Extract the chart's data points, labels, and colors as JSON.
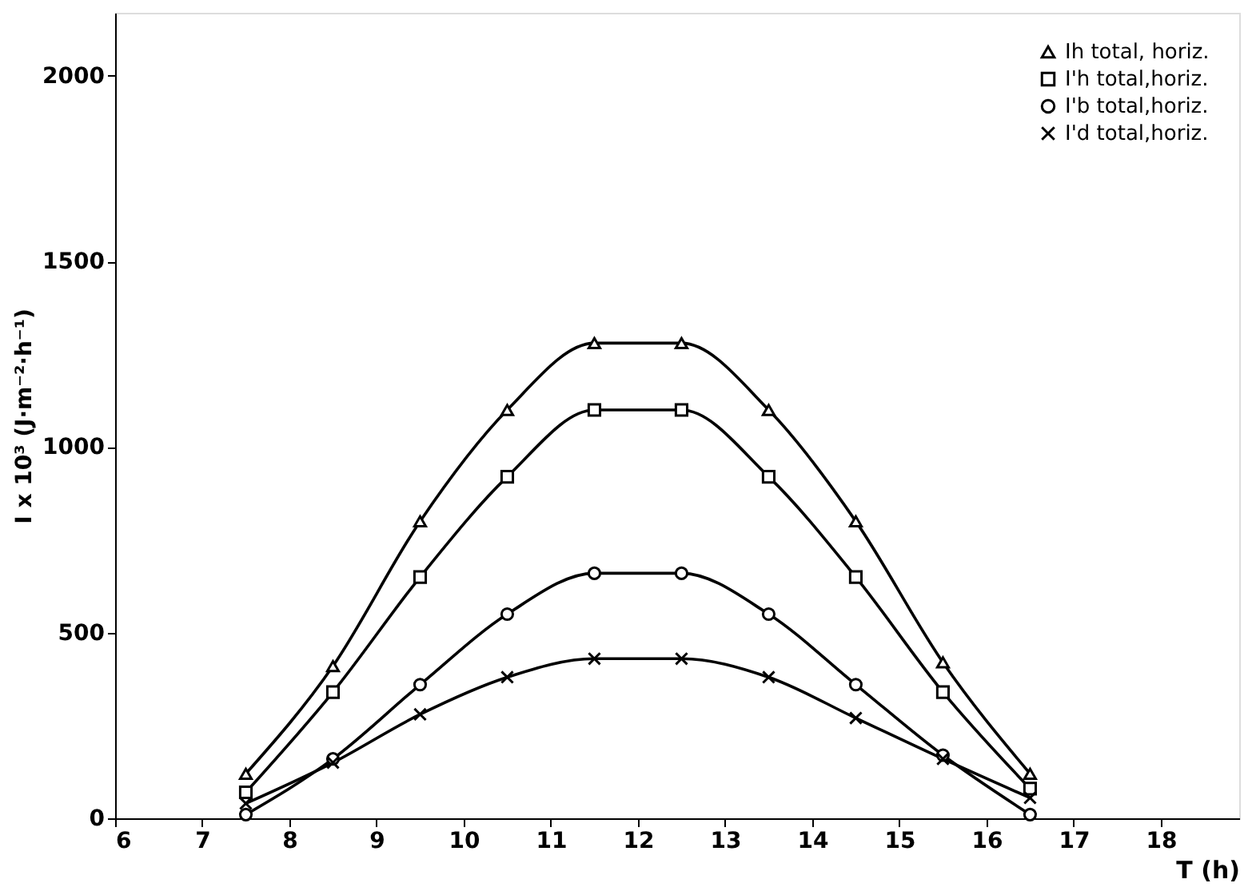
{
  "chart_data": {
    "type": "line",
    "xlabel": "T (h)",
    "ylabel": "I x 10³ (J·m⁻²·h⁻¹)",
    "x": [
      7.5,
      8.5,
      9.5,
      10.5,
      11.5,
      12.5,
      13.5,
      14.5,
      15.5,
      16.5
    ],
    "xlim": [
      6,
      18.9
    ],
    "xticks": [
      6,
      7,
      8,
      9,
      10,
      11,
      12,
      13,
      14,
      15,
      16,
      17,
      18
    ],
    "ylim": [
      0,
      2170
    ],
    "yticks": [
      0,
      500,
      1000,
      1500,
      2000
    ],
    "grid": false,
    "legend": "top right",
    "line_style": "solid",
    "series": [
      {
        "name": "Ih total, horiz.",
        "color": "#000000",
        "marker": "triangle",
        "values": [
          120,
          410,
          800,
          1100,
          1280,
          1280,
          1100,
          800,
          420,
          120
        ]
      },
      {
        "name": "I'h total,horiz.",
        "color": "#000000",
        "marker": "square",
        "values": [
          70,
          340,
          650,
          920,
          1100,
          1100,
          920,
          650,
          340,
          80
        ]
      },
      {
        "name": "I'b total,horiz.",
        "color": "#000000",
        "marker": "circle",
        "values": [
          10,
          160,
          360,
          550,
          660,
          660,
          550,
          360,
          170,
          10
        ]
      },
      {
        "name": "I'd total,horiz.",
        "color": "#000000",
        "marker": "cross",
        "values": [
          40,
          150,
          280,
          380,
          430,
          430,
          380,
          270,
          160,
          55
        ]
      }
    ]
  }
}
